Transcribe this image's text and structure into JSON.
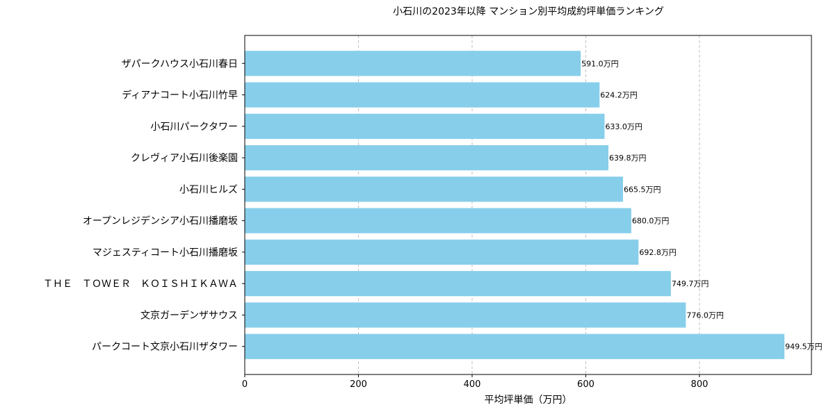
{
  "chart_data": {
    "type": "bar",
    "orientation": "horizontal",
    "title": "小石川の2023年以降 マンション別平均成約坪単価ランキング",
    "xlabel": "平均坪単価（万円）",
    "ylabel": "",
    "categories": [
      "ザパークハウス小石川春日",
      "ディアナコート小石川竹早",
      "小石川パークタワー",
      "クレヴィア小石川後楽園",
      "小石川ヒルズ",
      "オープンレジデンシア小石川播磨坂",
      "マジェスティコート小石川播磨坂",
      "ＴＨＥ　ＴＯＷＥＲ　ＫＯＩＳＨＩＫＡＷＡ",
      "文京ガーデンザサウス",
      "パークコート文京小石川ザタワー"
    ],
    "values": [
      591.0,
      624.2,
      633.0,
      639.8,
      665.5,
      680.0,
      692.8,
      749.7,
      776.0,
      949.5
    ],
    "data_labels": [
      "591.0万円",
      "624.2万円",
      "633.0万円",
      "639.8万円",
      "665.5万円",
      "680.0万円",
      "692.8万円",
      "749.7万円",
      "776.0万円",
      "949.5万円"
    ],
    "xlim": [
      0,
      997
    ],
    "xticks": [
      "0",
      "200",
      "400",
      "600",
      "800"
    ],
    "xtick_values": [
      0,
      200,
      400,
      600,
      800
    ],
    "grid": "x, dashed",
    "bar_color": "#87ceeb"
  }
}
